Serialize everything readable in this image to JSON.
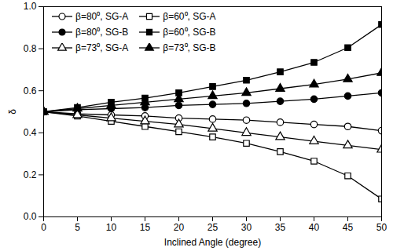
{
  "chart_data": {
    "type": "line",
    "x_label": "Inclined Angle (degree)",
    "y_label": "δ",
    "x": [
      0,
      5,
      10,
      15,
      20,
      25,
      30,
      35,
      40,
      45,
      50
    ],
    "xlim": [
      0,
      50
    ],
    "xticks": [
      0,
      5,
      10,
      15,
      20,
      25,
      30,
      35,
      40,
      45,
      50
    ],
    "ylim": [
      0,
      1
    ],
    "yticks": [
      {
        "value": 0,
        "label": "0.0"
      },
      {
        "value": 0.2,
        "label": "0.2"
      },
      {
        "value": 0.4,
        "label": "0.4"
      },
      {
        "value": 0.6,
        "label": "0.6"
      },
      {
        "value": 0.8,
        "label": "0.8"
      },
      {
        "value": 1,
        "label": "1.0"
      }
    ],
    "legend": "top-left",
    "series": [
      {
        "name": "β=80⁰, SG-A",
        "color": "#000000",
        "marker": "circle-open",
        "values": [
          0.5,
          0.49,
          0.485,
          0.48,
          0.47,
          0.465,
          0.46,
          0.45,
          0.44,
          0.43,
          0.41
        ]
      },
      {
        "name": "β=60⁰, SG-A",
        "color": "#000000",
        "marker": "square-open",
        "values": [
          0.5,
          0.48,
          0.455,
          0.43,
          0.405,
          0.38,
          0.35,
          0.31,
          0.265,
          0.195,
          0.085
        ]
      },
      {
        "name": "β=80⁰, SG-B",
        "color": "#000000",
        "marker": "circle",
        "values": [
          0.5,
          0.51,
          0.515,
          0.52,
          0.53,
          0.535,
          0.54,
          0.55,
          0.56,
          0.575,
          0.59
        ]
      },
      {
        "name": "β=60⁰, SG-B",
        "color": "#000000",
        "marker": "square",
        "values": [
          0.5,
          0.52,
          0.545,
          0.565,
          0.59,
          0.62,
          0.65,
          0.69,
          0.735,
          0.805,
          0.915
        ]
      },
      {
        "name": "β=73⁰, SG-A",
        "color": "#000000",
        "marker": "triangle-open",
        "values": [
          0.5,
          0.485,
          0.47,
          0.455,
          0.44,
          0.42,
          0.4,
          0.38,
          0.36,
          0.34,
          0.32
        ]
      },
      {
        "name": "β=73⁰, SG-B",
        "color": "#000000",
        "marker": "triangle",
        "values": [
          0.5,
          0.515,
          0.53,
          0.545,
          0.56,
          0.575,
          0.59,
          0.61,
          0.63,
          0.655,
          0.685
        ]
      }
    ]
  }
}
